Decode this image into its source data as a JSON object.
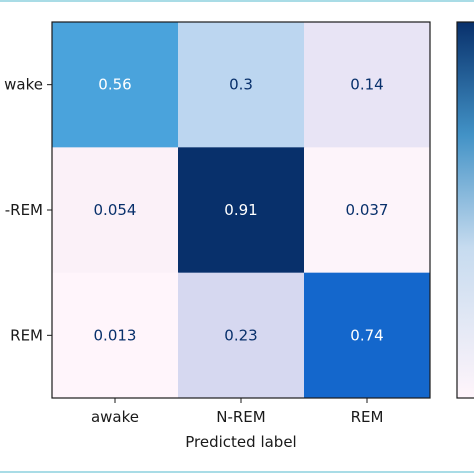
{
  "chart_data": {
    "type": "heatmap",
    "title": "",
    "xlabel": "Predicted label",
    "ylabel": "",
    "x_categories": [
      "awake",
      "N-REM",
      "REM"
    ],
    "y_categories": [
      "awake",
      "N-REM",
      "REM"
    ],
    "y_tick_labels_visible": [
      "wake",
      "-REM",
      "REM"
    ],
    "cells": [
      [
        {
          "value": 0.56,
          "label": "0.56",
          "color": "#4aa3dc",
          "text_color": "#ffffff"
        },
        {
          "value": 0.3,
          "label": "0.3",
          "color": "#bcd6f0",
          "text_color": "#08306b"
        },
        {
          "value": 0.14,
          "label": "0.14",
          "color": "#e8e4f5",
          "text_color": "#08306b"
        }
      ],
      [
        {
          "value": 0.054,
          "label": "0.054",
          "color": "#fbf1f8",
          "text_color": "#08306b"
        },
        {
          "value": 0.91,
          "label": "0.91",
          "color": "#08306b",
          "text_color": "#ffffff"
        },
        {
          "value": 0.037,
          "label": "0.037",
          "color": "#fdf4fa",
          "text_color": "#08306b"
        }
      ],
      [
        {
          "value": 0.013,
          "label": "0.013",
          "color": "#fff5fb",
          "text_color": "#08306b"
        },
        {
          "value": 0.23,
          "label": "0.23",
          "color": "#d6d8f0",
          "text_color": "#08306b"
        },
        {
          "value": 0.74,
          "label": "0.74",
          "color": "#1467cc",
          "text_color": "#ffffff"
        }
      ]
    ],
    "colormap": "Blues",
    "colorbar": true,
    "grid": false
  }
}
